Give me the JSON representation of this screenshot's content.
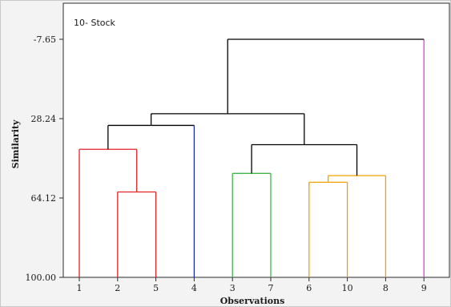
{
  "title": "10- Stock",
  "chart_data": {
    "type": "dendrogram",
    "title": "10- Stock",
    "xlabel": "Observations",
    "ylabel": "Similarity",
    "ylim": [
      100.0,
      -7.65
    ],
    "y_ticks": [
      "-7.65",
      "28.24",
      "64.12",
      "100.00"
    ],
    "y_tick_values": [
      -7.65,
      28.24,
      64.12,
      100.0
    ],
    "leaf_order": [
      "1",
      "2",
      "5",
      "4",
      "3",
      "7",
      "6",
      "10",
      "8",
      "9"
    ],
    "colors": {
      "red": "#e8202a",
      "blue": "#1a2bd6",
      "green": "#3cb84a",
      "orange": "#f5a000",
      "magenta": "#e43fd6",
      "black": "#000000"
    },
    "merges": [
      {
        "id": "m1",
        "left": "2",
        "right": "5",
        "similarity": 61.4,
        "color": "red"
      },
      {
        "id": "m2",
        "left": "1",
        "right": "m1",
        "similarity": 42.1,
        "color": "red"
      },
      {
        "id": "m3",
        "left": "m2",
        "right": "4",
        "similarity": 31.3,
        "color": "black"
      },
      {
        "id": "m4",
        "left": "3",
        "right": "7",
        "similarity": 53.0,
        "color": "green"
      },
      {
        "id": "m5",
        "left": "6",
        "right": "10",
        "similarity": 57.0,
        "color": "orange"
      },
      {
        "id": "m6",
        "left": "m5",
        "right": "8",
        "similarity": 54.0,
        "color": "orange"
      },
      {
        "id": "m7",
        "left": "m4",
        "right": "m6",
        "similarity": 40.0,
        "color": "black"
      },
      {
        "id": "m8",
        "left": "m3",
        "right": "m7",
        "similarity": 26.0,
        "color": "black"
      },
      {
        "id": "m9",
        "left": "m8",
        "right": "9",
        "similarity": -7.65,
        "color": "black"
      }
    ],
    "leaf_link_colors": {
      "1": "red",
      "2": "red",
      "5": "red",
      "4": "blue",
      "3": "green",
      "7": "green",
      "6": "orange",
      "10": "orange",
      "8": "orange",
      "9": "magenta"
    }
  }
}
